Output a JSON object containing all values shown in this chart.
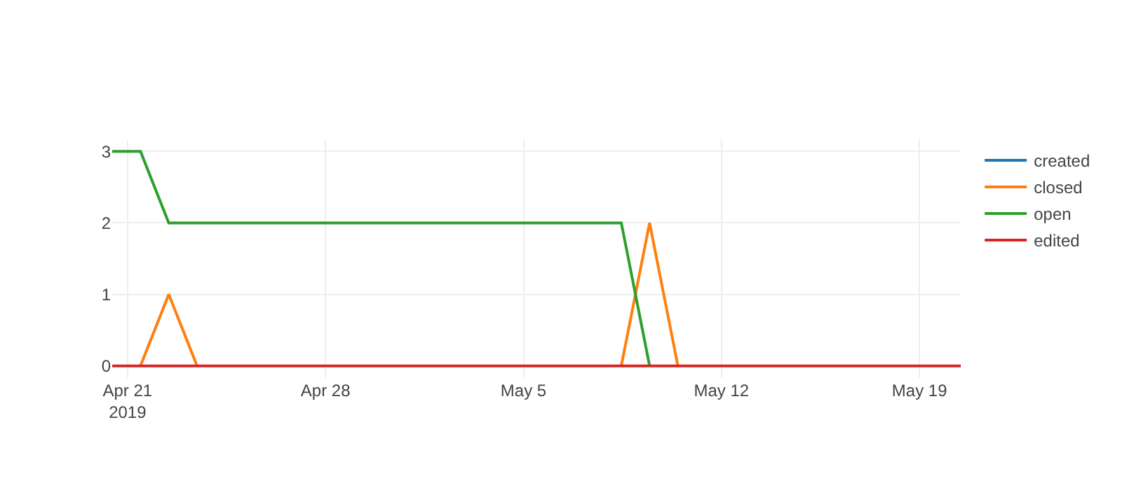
{
  "chart_data": {
    "type": "line",
    "x": [
      "2019-04-20T11:00",
      "2019-04-21T11:00",
      "2019-04-22T11:00",
      "2019-04-23T11:00",
      "2019-04-24T11:00",
      "2019-04-25T11:00",
      "2019-04-26T11:00",
      "2019-04-27T11:00",
      "2019-04-28T11:00",
      "2019-04-29T11:00",
      "2019-04-30T11:00",
      "2019-05-01T11:00",
      "2019-05-02T11:00",
      "2019-05-03T11:00",
      "2019-05-04T11:00",
      "2019-05-05T11:00",
      "2019-05-06T11:00",
      "2019-05-07T11:00",
      "2019-05-08T11:00",
      "2019-05-09T11:00",
      "2019-05-10T11:00",
      "2019-05-11T11:00",
      "2019-05-12T11:00",
      "2019-05-13T11:00",
      "2019-05-14T11:00",
      "2019-05-15T11:00",
      "2019-05-16T11:00",
      "2019-05-17T11:00",
      "2019-05-18T11:00",
      "2019-05-19T11:00",
      "2019-05-20T11:00"
    ],
    "series": [
      {
        "name": "created",
        "color": "#1f77b4",
        "values": [
          null,
          null,
          null,
          null,
          null,
          null,
          null,
          null,
          null,
          null,
          null,
          null,
          null,
          null,
          null,
          null,
          null,
          null,
          null,
          null,
          null,
          null,
          null,
          null,
          null,
          null,
          null,
          null,
          null,
          null,
          null
        ]
      },
      {
        "name": "closed",
        "color": "#ff7f0e",
        "values": [
          null,
          0,
          1,
          0,
          null,
          null,
          null,
          null,
          null,
          null,
          null,
          null,
          null,
          null,
          null,
          null,
          null,
          null,
          0,
          2,
          0,
          null,
          null,
          null,
          null,
          null,
          null,
          null,
          null,
          null,
          null
        ]
      },
      {
        "name": "open",
        "color": "#2ca02c",
        "values": [
          3,
          3,
          2,
          2,
          2,
          2,
          2,
          2,
          2,
          2,
          2,
          2,
          2,
          2,
          2,
          2,
          2,
          2,
          2,
          0,
          null,
          null,
          null,
          null,
          null,
          null,
          null,
          null,
          null,
          null,
          null
        ]
      },
      {
        "name": "edited",
        "color": "#d62728",
        "values": [
          0,
          0,
          0,
          0,
          0,
          0,
          0,
          0,
          0,
          0,
          0,
          0,
          0,
          0,
          0,
          0,
          0,
          0,
          0,
          0,
          0,
          0,
          0,
          0,
          0,
          0,
          0,
          0,
          0,
          0,
          0
        ]
      }
    ],
    "xlim": [
      "2019-04-20T11:00",
      "2019-05-20T11:00"
    ],
    "xticks": [
      {
        "value": "2019-04-21",
        "label": "Apr 21\n2019"
      },
      {
        "value": "2019-04-28",
        "label": "Apr 28"
      },
      {
        "value": "2019-05-05",
        "label": "May 5"
      },
      {
        "value": "2019-05-12",
        "label": "May 12"
      },
      {
        "value": "2019-05-19",
        "label": "May 19"
      }
    ],
    "ylim": [
      -0.17,
      3.16
    ],
    "yticks": [
      0,
      1,
      2,
      3
    ],
    "grid": true,
    "legend": "top right",
    "marker": "none",
    "line_style": "solid"
  }
}
